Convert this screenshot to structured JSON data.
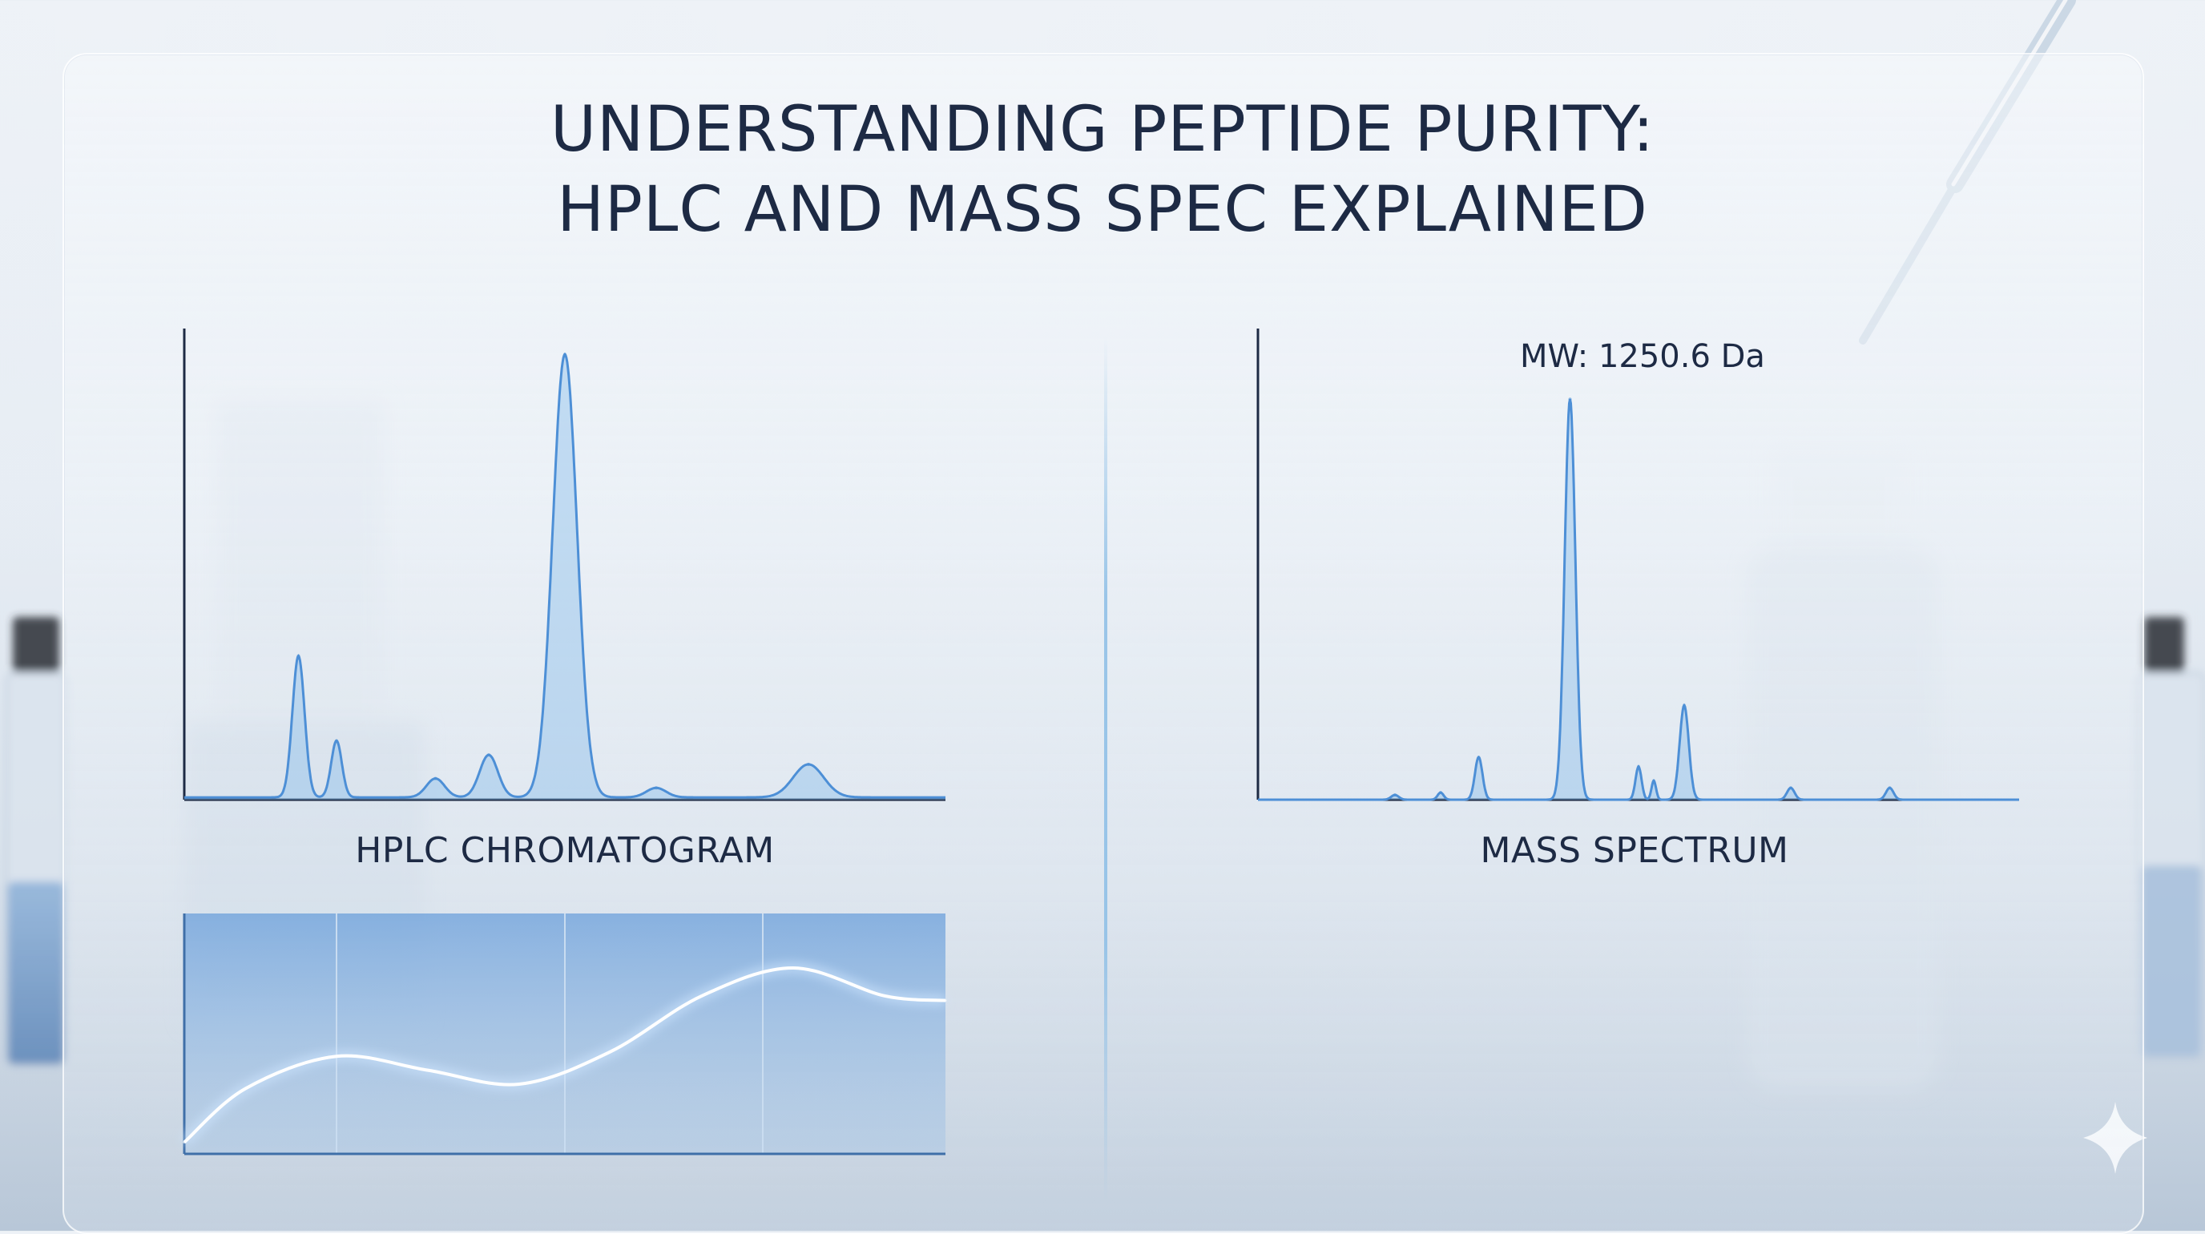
{
  "title_line1": "UNDERSTANDING PEPTIDE PURITY:",
  "title_line2": "HPLC AND MASS SPEC EXPLAINED",
  "chart_data": [
    {
      "type": "line",
      "title": "HPLC CHROMATOGRAM",
      "grid": false,
      "xlim": [
        0,
        100
      ],
      "ylim": [
        0,
        100
      ],
      "peaks": [
        {
          "x": 15,
          "height": 30,
          "width": 0.8
        },
        {
          "x": 20,
          "height": 12,
          "width": 0.7
        },
        {
          "x": 33,
          "height": 4,
          "width": 1.2
        },
        {
          "x": 40,
          "height": 9,
          "width": 1.2
        },
        {
          "x": 50,
          "height": 94,
          "width": 1.6
        },
        {
          "x": 62,
          "height": 2,
          "width": 1.3
        },
        {
          "x": 82,
          "height": 7,
          "width": 2.0
        }
      ],
      "baseline": 0.5,
      "color": "#4d8fd6"
    },
    {
      "type": "line",
      "title": "MASS SPECTRUM",
      "annotation": "MW: 1250.6 Da",
      "grid": false,
      "xlim": [
        0,
        100
      ],
      "ylim": [
        0,
        100
      ],
      "peaks": [
        {
          "x": 18,
          "height": 1,
          "width": 0.5
        },
        {
          "x": 24,
          "height": 1.5,
          "width": 0.4
        },
        {
          "x": 29,
          "height": 9,
          "width": 0.5
        },
        {
          "x": 41,
          "height": 85,
          "width": 0.7
        },
        {
          "x": 50,
          "height": 7,
          "width": 0.4
        },
        {
          "x": 52,
          "height": 4,
          "width": 0.3
        },
        {
          "x": 56,
          "height": 20,
          "width": 0.6
        },
        {
          "x": 70,
          "height": 2.5,
          "width": 0.5
        },
        {
          "x": 83,
          "height": 2.5,
          "width": 0.5
        }
      ],
      "color": "#4d8fd6"
    },
    {
      "type": "area",
      "grid": true,
      "xlim": [
        0,
        100
      ],
      "ylim": [
        0,
        100
      ],
      "x": [
        0,
        8,
        20,
        32,
        44,
        56,
        68,
        80,
        92,
        100
      ],
      "y": [
        5,
        28,
        42,
        36,
        30,
        44,
        68,
        80,
        68,
        66
      ],
      "vertical_gridlines_x": [
        20,
        50,
        76
      ],
      "color": "#4d8fd6"
    }
  ]
}
